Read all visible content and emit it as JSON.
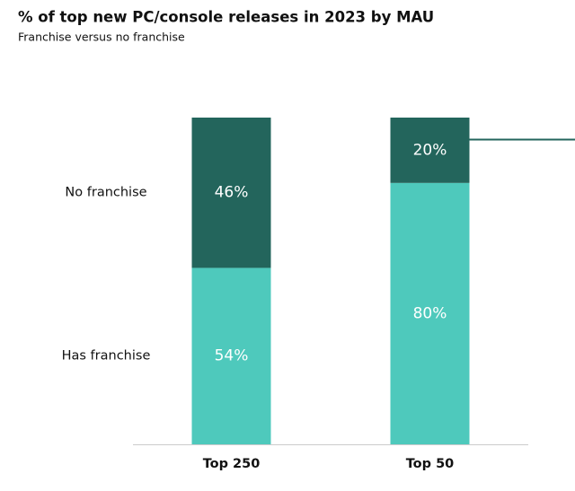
{
  "chart_data": {
    "type": "stacked_bar",
    "title": "% of top new PC/console releases in 2023 by MAU",
    "subtitle": "Franchise versus no franchise",
    "categories": [
      "Top 250",
      "Top 50"
    ],
    "series": [
      {
        "name": "Has franchise",
        "color": "#4ec9bc",
        "values": [
          54,
          80
        ],
        "value_labels": [
          "54%",
          "80%"
        ]
      },
      {
        "name": "No franchise",
        "color": "#23655c",
        "values": [
          46,
          20
        ],
        "value_labels": [
          "46%",
          "20%"
        ]
      }
    ],
    "ylim": [
      0,
      100
    ]
  }
}
